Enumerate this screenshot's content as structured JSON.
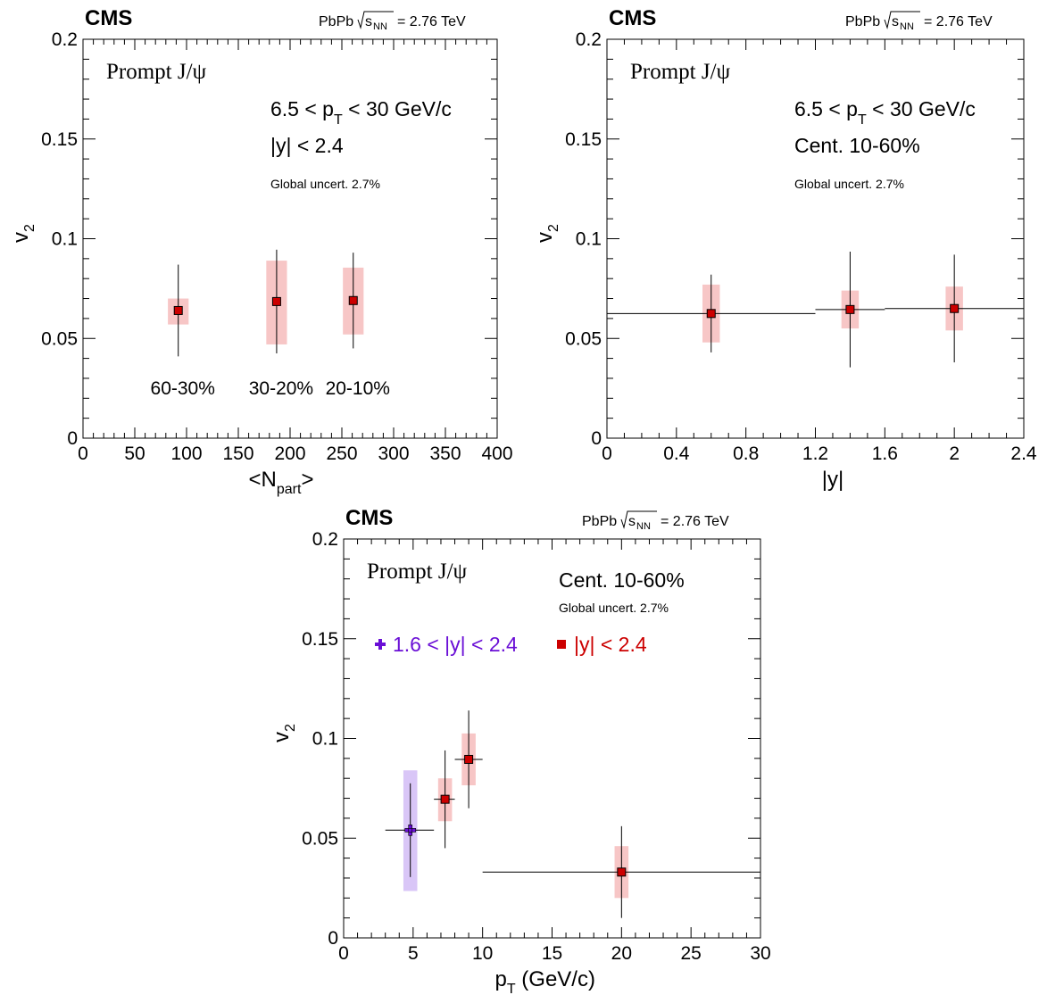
{
  "colors": {
    "red_marker": "#cc0000",
    "red_band": "#f7c6c6",
    "purple_marker": "#6a0fd6",
    "purple_band": "#d9c6f7",
    "axis": "#000000"
  },
  "chart_data": [
    {
      "type": "scatter",
      "cms_label": "CMS",
      "energy_label": "PbPb √sNN = 2.76 TeV",
      "energy_prefix": "PbPb",
      "energy_sub": "NN",
      "energy_value": "= 2.76 TeV",
      "species": "Prompt J/ψ",
      "text_lines": [
        "6.5 < pT < 30 GeV/c",
        "|y| < 2.4"
      ],
      "global_uncert": "Global uncert. 2.7%",
      "xlabel": "<Npart>",
      "ylabel": "v2",
      "xlim": [
        0,
        400
      ],
      "ylim": [
        0,
        0.2
      ],
      "x_ticks": [
        "0",
        "50",
        "100",
        "150",
        "200",
        "250",
        "300",
        "350",
        "400"
      ],
      "y_ticks": [
        "0",
        "0.05",
        "0.1",
        "0.15",
        "0.2"
      ],
      "centrality_labels": [
        {
          "text": "60-30%",
          "x": 92
        },
        {
          "text": "30-20%",
          "x": 187
        },
        {
          "text": "20-10%",
          "x": 261
        }
      ],
      "series": [
        {
          "color": "red",
          "points": [
            {
              "x": 92,
              "y": 0.064,
              "stat": 0.023,
              "sys_lo": 0.057,
              "sys_hi": 0.07,
              "xerr": 0,
              "band_halfwidth": 10
            },
            {
              "x": 187,
              "y": 0.0685,
              "stat": 0.026,
              "sys_lo": 0.047,
              "sys_hi": 0.089,
              "xerr": 0,
              "band_halfwidth": 10
            },
            {
              "x": 261,
              "y": 0.069,
              "stat": 0.024,
              "sys_lo": 0.052,
              "sys_hi": 0.0855,
              "xerr": 0,
              "band_halfwidth": 10
            }
          ]
        }
      ]
    },
    {
      "type": "scatter",
      "cms_label": "CMS",
      "energy_label": "PbPb √sNN = 2.76 TeV",
      "energy_prefix": "PbPb",
      "energy_sub": "NN",
      "energy_value": "= 2.76 TeV",
      "species": "Prompt J/ψ",
      "text_lines": [
        "6.5 < pT < 30 GeV/c",
        "Cent. 10-60%"
      ],
      "global_uncert": "Global uncert. 2.7%",
      "xlabel": "|y|",
      "ylabel": "v2",
      "xlim": [
        0,
        2.4
      ],
      "ylim": [
        0,
        0.2
      ],
      "x_ticks": [
        "0",
        "0.4",
        "0.8",
        "1.2",
        "1.6",
        "2",
        "2.4"
      ],
      "y_ticks": [
        "0",
        "0.05",
        "0.1",
        "0.15",
        "0.2"
      ],
      "series": [
        {
          "color": "red",
          "points": [
            {
              "x": 0.6,
              "y": 0.0625,
              "stat": 0.0195,
              "sys_lo": 0.048,
              "sys_hi": 0.077,
              "xlo": 0,
              "xhi": 1.2,
              "band_halfwidth": 0.05
            },
            {
              "x": 1.4,
              "y": 0.0645,
              "stat": 0.029,
              "sys_lo": 0.055,
              "sys_hi": 0.074,
              "xlo": 1.2,
              "xhi": 1.6,
              "band_halfwidth": 0.05
            },
            {
              "x": 2.0,
              "y": 0.065,
              "stat": 0.027,
              "sys_lo": 0.054,
              "sys_hi": 0.076,
              "xlo": 1.6,
              "xhi": 2.4,
              "band_halfwidth": 0.05
            }
          ]
        }
      ]
    },
    {
      "type": "scatter",
      "cms_label": "CMS",
      "energy_label": "PbPb √sNN = 2.76 TeV",
      "energy_prefix": "PbPb",
      "energy_sub": "NN",
      "energy_value": "= 2.76 TeV",
      "species": "Prompt J/ψ",
      "text_lines": [
        "Cent. 10-60%"
      ],
      "global_uncert": "Global uncert. 2.7%",
      "xlabel": "pT (GeV/c)",
      "ylabel": "v2",
      "xlim": [
        0,
        30
      ],
      "ylim": [
        0,
        0.2
      ],
      "x_ticks": [
        "0",
        "5",
        "10",
        "15",
        "20",
        "25",
        "30"
      ],
      "y_ticks": [
        "0",
        "0.05",
        "0.1",
        "0.15",
        "0.2"
      ],
      "legend": [
        {
          "label": "1.6 < |y| < 2.4",
          "color": "purple",
          "marker": "cross"
        },
        {
          "label": "|y| < 2.4",
          "color": "red",
          "marker": "square"
        }
      ],
      "series": [
        {
          "name": "1.6 < |y| < 2.4",
          "color": "purple",
          "marker": "cross",
          "points": [
            {
              "x": 4.8,
              "y": 0.054,
              "stat": 0.0235,
              "sys_lo": 0.0235,
              "sys_hi": 0.084,
              "xlo": 3.0,
              "xhi": 6.5,
              "band_halfwidth": 0.5
            }
          ]
        },
        {
          "name": "|y| < 2.4",
          "color": "red",
          "marker": "square",
          "points": [
            {
              "x": 7.3,
              "y": 0.0695,
              "stat": 0.0245,
              "sys_lo": 0.0585,
              "sys_hi": 0.08,
              "xlo": 6.5,
              "xhi": 8.0,
              "band_halfwidth": 0.5
            },
            {
              "x": 9.0,
              "y": 0.0895,
              "stat": 0.0245,
              "sys_lo": 0.0765,
              "sys_hi": 0.1025,
              "xlo": 8.0,
              "xhi": 10.0,
              "band_halfwidth": 0.5
            },
            {
              "x": 20.0,
              "y": 0.033,
              "stat": 0.023,
              "sys_lo": 0.02,
              "sys_hi": 0.046,
              "xlo": 10.0,
              "xhi": 30.0,
              "band_halfwidth": 0.5
            }
          ]
        }
      ]
    }
  ]
}
